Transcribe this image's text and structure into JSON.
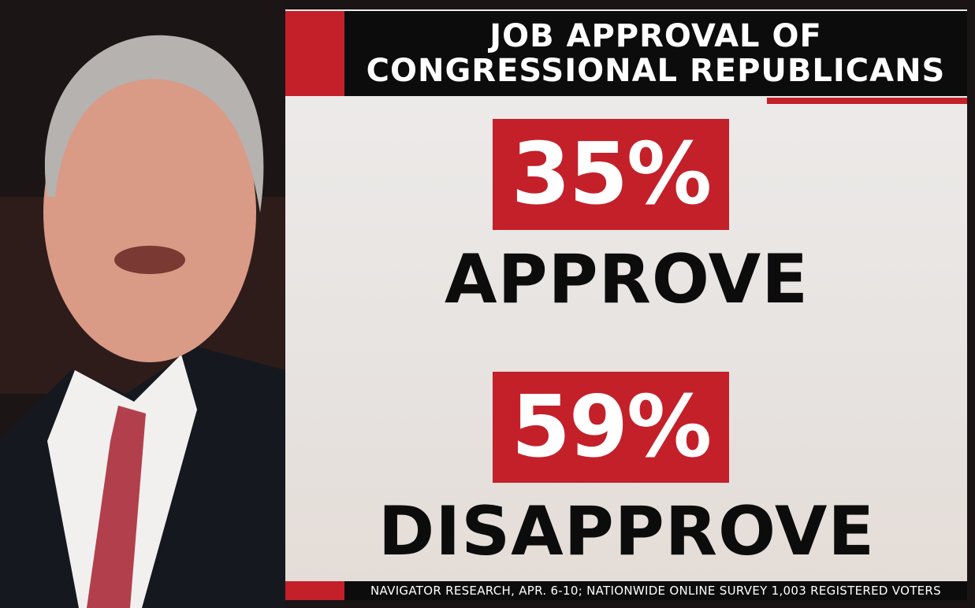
{
  "title_lines": [
    "JOB APPROVAL OF",
    "CONGRESSIONAL REPUBLICANS"
  ],
  "items": [
    {
      "value": "35%",
      "label": "APPROVE"
    },
    {
      "value": "59%",
      "label": "DISAPPROVE"
    }
  ],
  "source": "NAVIGATOR RESEARCH, APR. 6-10; NATIONWIDE ONLINE SURVEY 1,003 REGISTERED VOTERS"
}
